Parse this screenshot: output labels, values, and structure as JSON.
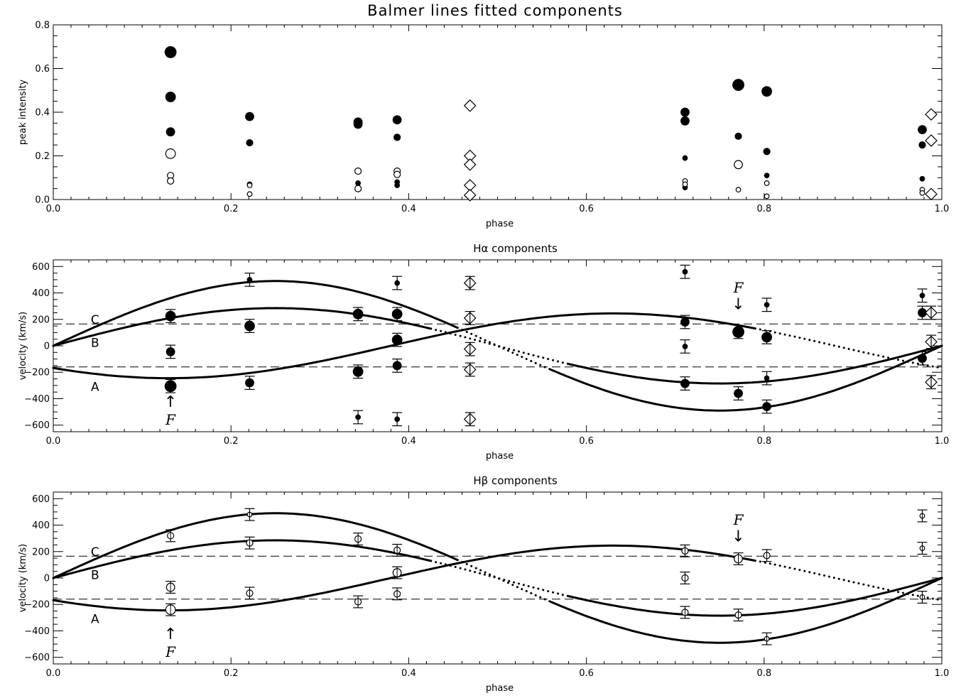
{
  "figure_title": "Balmer lines fitted components",
  "chart_data": [
    {
      "type": "scatter",
      "title": "",
      "xlabel": "phase",
      "ylabel": "peak intensity",
      "xlim": [
        0.0,
        1.0
      ],
      "ylim": [
        0.0,
        0.8
      ],
      "xticks": [
        "0.0",
        "0.2",
        "0.4",
        "0.6",
        "0.8",
        "1.0"
      ],
      "yticks": [
        "0.0",
        "0.2",
        "0.4",
        "0.6",
        "0.8"
      ],
      "series": [
        {
          "marker": "filled-circle",
          "points": [
            {
              "x": 0.132,
              "y": 0.675,
              "size": "xl"
            },
            {
              "x": 0.132,
              "y": 0.47,
              "size": "l"
            },
            {
              "x": 0.132,
              "y": 0.31,
              "size": "m"
            },
            {
              "x": 0.221,
              "y": 0.38,
              "size": "m"
            },
            {
              "x": 0.221,
              "y": 0.26,
              "size": "s"
            },
            {
              "x": 0.221,
              "y": 0.07,
              "size": "xs"
            },
            {
              "x": 0.343,
              "y": 0.355,
              "size": "m"
            },
            {
              "x": 0.343,
              "y": 0.345,
              "size": "m"
            },
            {
              "x": 0.343,
              "y": 0.075,
              "size": "xs"
            },
            {
              "x": 0.387,
              "y": 0.365,
              "size": "m"
            },
            {
              "x": 0.387,
              "y": 0.285,
              "size": "s"
            },
            {
              "x": 0.387,
              "y": 0.08,
              "size": "xs"
            },
            {
              "x": 0.387,
              "y": 0.065,
              "size": "xs"
            },
            {
              "x": 0.711,
              "y": 0.4,
              "size": "m"
            },
            {
              "x": 0.711,
              "y": 0.36,
              "size": "m"
            },
            {
              "x": 0.711,
              "y": 0.19,
              "size": "xs"
            },
            {
              "x": 0.711,
              "y": 0.055,
              "size": "xs"
            },
            {
              "x": 0.771,
              "y": 0.525,
              "size": "xl"
            },
            {
              "x": 0.771,
              "y": 0.29,
              "size": "s"
            },
            {
              "x": 0.803,
              "y": 0.495,
              "size": "l"
            },
            {
              "x": 0.803,
              "y": 0.22,
              "size": "s"
            },
            {
              "x": 0.803,
              "y": 0.11,
              "size": "xs"
            },
            {
              "x": 0.978,
              "y": 0.32,
              "size": "m"
            },
            {
              "x": 0.978,
              "y": 0.25,
              "size": "s"
            },
            {
              "x": 0.978,
              "y": 0.095,
              "size": "xs"
            }
          ]
        },
        {
          "marker": "open-circle",
          "points": [
            {
              "x": 0.132,
              "y": 0.21,
              "size": "l"
            },
            {
              "x": 0.132,
              "y": 0.11,
              "size": "s"
            },
            {
              "x": 0.132,
              "y": 0.085,
              "size": "s"
            },
            {
              "x": 0.221,
              "y": 0.065,
              "size": "xs"
            },
            {
              "x": 0.221,
              "y": 0.025,
              "size": "xs"
            },
            {
              "x": 0.343,
              "y": 0.13,
              "size": "s"
            },
            {
              "x": 0.343,
              "y": 0.05,
              "size": "s"
            },
            {
              "x": 0.387,
              "y": 0.13,
              "size": "s"
            },
            {
              "x": 0.387,
              "y": 0.115,
              "size": "s"
            },
            {
              "x": 0.711,
              "y": 0.085,
              "size": "xs"
            },
            {
              "x": 0.711,
              "y": 0.07,
              "size": "xs"
            },
            {
              "x": 0.771,
              "y": 0.16,
              "size": "m"
            },
            {
              "x": 0.771,
              "y": 0.045,
              "size": "xs"
            },
            {
              "x": 0.803,
              "y": 0.075,
              "size": "xs"
            },
            {
              "x": 0.803,
              "y": 0.015,
              "size": "xs"
            },
            {
              "x": 0.978,
              "y": 0.045,
              "size": "xs"
            },
            {
              "x": 0.978,
              "y": 0.03,
              "size": "xs"
            }
          ]
        },
        {
          "marker": "open-diamond",
          "points": [
            {
              "x": 0.469,
              "y": 0.43
            },
            {
              "x": 0.469,
              "y": 0.2
            },
            {
              "x": 0.469,
              "y": 0.16
            },
            {
              "x": 0.469,
              "y": 0.065
            },
            {
              "x": 0.469,
              "y": 0.02
            },
            {
              "x": 0.988,
              "y": 0.39
            },
            {
              "x": 0.988,
              "y": 0.27
            },
            {
              "x": 0.988,
              "y": 0.025
            }
          ]
        }
      ]
    },
    {
      "type": "scatter",
      "title": "Hα components",
      "xlabel": "phase",
      "ylabel": "velocity (km/s)",
      "xlim": [
        0.0,
        1.0
      ],
      "ylim": [
        -650,
        650
      ],
      "xticks": [
        "0.0",
        "0.2",
        "0.4",
        "0.6",
        "0.8",
        "1.0"
      ],
      "yticks": [
        "−600",
        "−400",
        "−200",
        "0",
        "200",
        "400",
        "600"
      ],
      "hlines": [
        165,
        -160
      ],
      "curve_labels": [
        "C",
        "B",
        "A"
      ],
      "annotations": [
        "F",
        "F"
      ],
      "points": [
        {
          "x": 0.132,
          "y": 225,
          "marker": "filled-circle",
          "size": "l",
          "err": 50
        },
        {
          "x": 0.132,
          "y": -45,
          "marker": "filled-circle",
          "size": "m",
          "err": 50
        },
        {
          "x": 0.132,
          "y": -305,
          "marker": "filled-circle",
          "size": "xl",
          "err": 50
        },
        {
          "x": 0.221,
          "y": 500,
          "marker": "filled-circle",
          "size": "xs",
          "err": 50
        },
        {
          "x": 0.221,
          "y": 150,
          "marker": "filled-circle",
          "size": "l",
          "err": 50
        },
        {
          "x": 0.221,
          "y": -280,
          "marker": "filled-circle",
          "size": "m",
          "err": 50
        },
        {
          "x": 0.343,
          "y": 240,
          "marker": "filled-circle",
          "size": "l",
          "err": 50
        },
        {
          "x": 0.343,
          "y": -195,
          "marker": "filled-circle",
          "size": "l",
          "err": 50
        },
        {
          "x": 0.343,
          "y": -540,
          "marker": "filled-circle",
          "size": "xs",
          "err": 50
        },
        {
          "x": 0.387,
          "y": 475,
          "marker": "filled-circle",
          "size": "xs",
          "err": 50
        },
        {
          "x": 0.387,
          "y": 240,
          "marker": "filled-circle",
          "size": "l",
          "err": 50
        },
        {
          "x": 0.387,
          "y": 45,
          "marker": "filled-circle",
          "size": "l",
          "err": 50
        },
        {
          "x": 0.387,
          "y": -150,
          "marker": "filled-circle",
          "size": "m",
          "err": 50
        },
        {
          "x": 0.387,
          "y": -555,
          "marker": "filled-circle",
          "size": "xs",
          "err": 50
        },
        {
          "x": 0.469,
          "y": 475,
          "marker": "open-diamond",
          "err": 50
        },
        {
          "x": 0.469,
          "y": 210,
          "marker": "open-diamond",
          "err": 50
        },
        {
          "x": 0.469,
          "y": -25,
          "marker": "open-diamond",
          "err": 50
        },
        {
          "x": 0.469,
          "y": -180,
          "marker": "open-diamond",
          "err": 50
        },
        {
          "x": 0.469,
          "y": -555,
          "marker": "open-diamond",
          "err": 50
        },
        {
          "x": 0.711,
          "y": 560,
          "marker": "filled-circle",
          "size": "xs",
          "err": 50
        },
        {
          "x": 0.711,
          "y": 180,
          "marker": "filled-circle",
          "size": "m",
          "err": 50
        },
        {
          "x": 0.711,
          "y": -5,
          "marker": "filled-circle",
          "size": "xs",
          "err": 50
        },
        {
          "x": 0.711,
          "y": -285,
          "marker": "filled-circle",
          "size": "m",
          "err": 50
        },
        {
          "x": 0.771,
          "y": 105,
          "marker": "filled-circle",
          "size": "xl",
          "err": 50
        },
        {
          "x": 0.771,
          "y": -360,
          "marker": "filled-circle",
          "size": "m",
          "err": 50
        },
        {
          "x": 0.803,
          "y": 310,
          "marker": "filled-circle",
          "size": "xs",
          "err": 50
        },
        {
          "x": 0.803,
          "y": 65,
          "marker": "filled-circle",
          "size": "l",
          "err": 50
        },
        {
          "x": 0.803,
          "y": -245,
          "marker": "filled-circle",
          "size": "xs",
          "err": 50
        },
        {
          "x": 0.803,
          "y": -460,
          "marker": "filled-circle",
          "size": "m",
          "err": 50
        },
        {
          "x": 0.978,
          "y": 380,
          "marker": "filled-circle",
          "size": "xs",
          "err": 50
        },
        {
          "x": 0.978,
          "y": 250,
          "marker": "filled-circle",
          "size": "m",
          "err": 50
        },
        {
          "x": 0.978,
          "y": -95,
          "marker": "filled-circle",
          "size": "m",
          "err": 50
        },
        {
          "x": 0.988,
          "y": 250,
          "marker": "open-diamond",
          "err": 50
        },
        {
          "x": 0.988,
          "y": 30,
          "marker": "open-diamond",
          "err": 50
        },
        {
          "x": 0.988,
          "y": -275,
          "marker": "open-diamond",
          "err": 50
        }
      ]
    },
    {
      "type": "scatter",
      "title": "Hβ components",
      "xlabel": "phase",
      "ylabel": "velocity (km/s)",
      "xlim": [
        0.0,
        1.0
      ],
      "ylim": [
        -650,
        650
      ],
      "xticks": [
        "0.0",
        "0.2",
        "0.4",
        "0.6",
        "0.8",
        "1.0"
      ],
      "yticks": [
        "−600",
        "−400",
        "−200",
        "0",
        "200",
        "400",
        "600"
      ],
      "hlines": [
        165,
        -160
      ],
      "curve_labels": [
        "C",
        "B",
        "A"
      ],
      "annotations": [
        "F",
        "F"
      ],
      "points": [
        {
          "x": 0.132,
          "y": 320,
          "marker": "open-circle",
          "size": "s",
          "err": 45
        },
        {
          "x": 0.132,
          "y": -70,
          "marker": "open-circle",
          "size": "m",
          "err": 45
        },
        {
          "x": 0.132,
          "y": -240,
          "marker": "open-circle",
          "size": "l",
          "err": 45
        },
        {
          "x": 0.221,
          "y": 480,
          "marker": "open-circle",
          "size": "xs",
          "err": 45
        },
        {
          "x": 0.221,
          "y": 265,
          "marker": "open-circle",
          "size": "s",
          "err": 45
        },
        {
          "x": 0.221,
          "y": -115,
          "marker": "open-circle",
          "size": "s",
          "err": 45
        },
        {
          "x": 0.343,
          "y": 295,
          "marker": "open-circle",
          "size": "s",
          "err": 45
        },
        {
          "x": 0.343,
          "y": -180,
          "marker": "open-circle",
          "size": "s",
          "err": 45
        },
        {
          "x": 0.387,
          "y": 210,
          "marker": "open-circle",
          "size": "s",
          "err": 45
        },
        {
          "x": 0.387,
          "y": 40,
          "marker": "open-circle",
          "size": "m",
          "err": 45
        },
        {
          "x": 0.387,
          "y": -120,
          "marker": "open-circle",
          "size": "s",
          "err": 45
        },
        {
          "x": 0.711,
          "y": 205,
          "marker": "open-circle",
          "size": "s",
          "err": 45
        },
        {
          "x": 0.711,
          "y": 0,
          "marker": "open-circle",
          "size": "s",
          "err": 45
        },
        {
          "x": 0.711,
          "y": -260,
          "marker": "open-circle",
          "size": "s",
          "err": 45
        },
        {
          "x": 0.771,
          "y": 145,
          "marker": "open-circle",
          "size": "m",
          "err": 45
        },
        {
          "x": 0.771,
          "y": -280,
          "marker": "open-circle",
          "size": "s",
          "err": 45
        },
        {
          "x": 0.803,
          "y": 170,
          "marker": "open-circle",
          "size": "s",
          "err": 45
        },
        {
          "x": 0.803,
          "y": -460,
          "marker": "open-circle",
          "size": "xs",
          "err": 45
        },
        {
          "x": 0.978,
          "y": 470,
          "marker": "open-circle",
          "size": "xs",
          "err": 45
        },
        {
          "x": 0.978,
          "y": 225,
          "marker": "open-circle",
          "size": "xs",
          "err": 45
        },
        {
          "x": 0.978,
          "y": -145,
          "marker": "open-circle",
          "size": "xs",
          "err": 45
        }
      ]
    }
  ]
}
